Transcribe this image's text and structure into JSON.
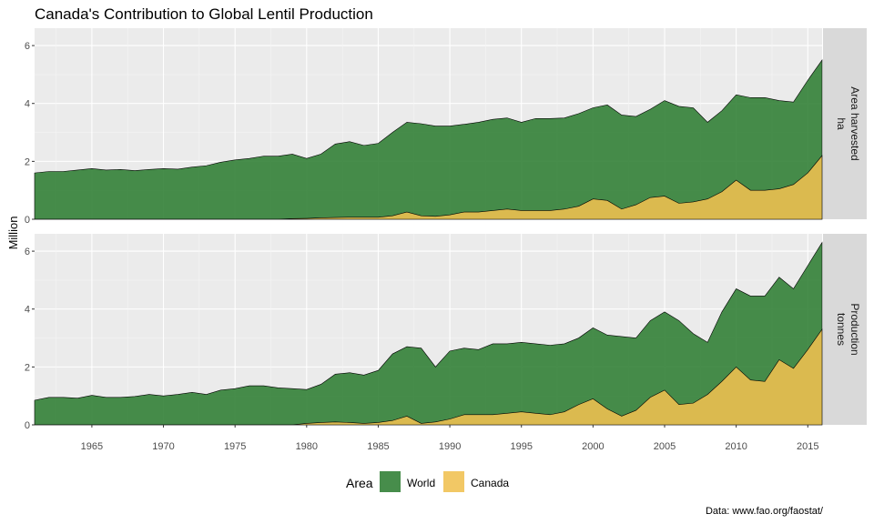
{
  "chart_data": {
    "type": "area",
    "title": "Canada's Contribution to Global Lentil Production",
    "ylabel": "Million",
    "xlabel": "",
    "x": [
      1961,
      1962,
      1963,
      1964,
      1965,
      1966,
      1967,
      1968,
      1969,
      1970,
      1971,
      1972,
      1973,
      1974,
      1975,
      1976,
      1977,
      1978,
      1979,
      1980,
      1981,
      1982,
      1983,
      1984,
      1985,
      1986,
      1987,
      1988,
      1989,
      1990,
      1991,
      1992,
      1993,
      1994,
      1995,
      1996,
      1997,
      1998,
      1999,
      2000,
      2001,
      2002,
      2003,
      2004,
      2005,
      2006,
      2007,
      2008,
      2009,
      2010,
      2011,
      2012,
      2013,
      2014,
      2015,
      2016
    ],
    "x_ticks": [
      "1965",
      "1970",
      "1975",
      "1980",
      "1985",
      "1990",
      "1995",
      "2000",
      "2005",
      "2010",
      "2015"
    ],
    "y_ticks": [
      "0",
      "2",
      "4",
      "6"
    ],
    "ylim": [
      0,
      6.6
    ],
    "grid": true,
    "legend": {
      "title": "Area",
      "position": "bottom"
    },
    "series": [
      {
        "name": "World",
        "color": "#2e7d32"
      },
      {
        "name": "Canada",
        "color": "#f0c050"
      }
    ],
    "facets": [
      {
        "label_line1": "Area harvested",
        "label_line2": "ha",
        "World": [
          1.6,
          1.65,
          1.65,
          1.7,
          1.75,
          1.7,
          1.72,
          1.68,
          1.72,
          1.75,
          1.73,
          1.8,
          1.85,
          1.97,
          2.05,
          2.1,
          2.18,
          2.18,
          2.25,
          2.1,
          2.25,
          2.6,
          2.68,
          2.55,
          2.62,
          3.0,
          3.35,
          3.3,
          3.22,
          3.22,
          3.28,
          3.35,
          3.45,
          3.5,
          3.35,
          3.48,
          3.48,
          3.5,
          3.65,
          3.85,
          3.95,
          3.6,
          3.55,
          3.8,
          4.1,
          3.9,
          3.85,
          3.35,
          3.75,
          4.3,
          4.2,
          4.2,
          4.1,
          4.05,
          4.8,
          5.5
        ],
        "Canada": [
          0,
          0,
          0,
          0,
          0,
          0,
          0,
          0,
          0,
          0,
          0,
          0,
          0,
          0,
          0,
          0,
          0,
          0,
          0.02,
          0.03,
          0.05,
          0.06,
          0.07,
          0.07,
          0.07,
          0.12,
          0.25,
          0.12,
          0.1,
          0.15,
          0.25,
          0.25,
          0.3,
          0.35,
          0.3,
          0.3,
          0.3,
          0.35,
          0.45,
          0.7,
          0.65,
          0.35,
          0.5,
          0.75,
          0.8,
          0.55,
          0.6,
          0.7,
          0.95,
          1.35,
          1.0,
          1.0,
          1.05,
          1.2,
          1.6,
          2.2
        ]
      },
      {
        "label_line1": "Production",
        "label_line2": "tonnes",
        "World": [
          0.85,
          0.95,
          0.95,
          0.92,
          1.02,
          0.95,
          0.95,
          0.98,
          1.05,
          1.0,
          1.05,
          1.12,
          1.05,
          1.2,
          1.25,
          1.35,
          1.35,
          1.28,
          1.25,
          1.22,
          1.4,
          1.75,
          1.8,
          1.72,
          1.88,
          2.45,
          2.7,
          2.65,
          2.0,
          2.55,
          2.65,
          2.6,
          2.8,
          2.8,
          2.85,
          2.8,
          2.75,
          2.8,
          3.0,
          3.35,
          3.1,
          3.05,
          3.0,
          3.6,
          3.9,
          3.6,
          3.15,
          2.85,
          3.9,
          4.7,
          4.45,
          4.45,
          5.1,
          4.7,
          5.5,
          6.3
        ],
        "Canada": [
          0,
          0,
          0,
          0,
          0,
          0,
          0,
          0,
          0,
          0,
          0,
          0,
          0,
          0,
          0,
          0,
          0,
          0,
          0,
          0.05,
          0.08,
          0.1,
          0.08,
          0.05,
          0.08,
          0.15,
          0.3,
          0.05,
          0.1,
          0.2,
          0.35,
          0.35,
          0.35,
          0.4,
          0.45,
          0.4,
          0.35,
          0.45,
          0.7,
          0.9,
          0.55,
          0.3,
          0.5,
          0.95,
          1.2,
          0.7,
          0.75,
          1.05,
          1.5,
          2.0,
          1.55,
          1.5,
          2.25,
          1.95,
          2.6,
          3.3
        ]
      }
    ]
  },
  "caption": "Data: www.fao.org/faostat/"
}
